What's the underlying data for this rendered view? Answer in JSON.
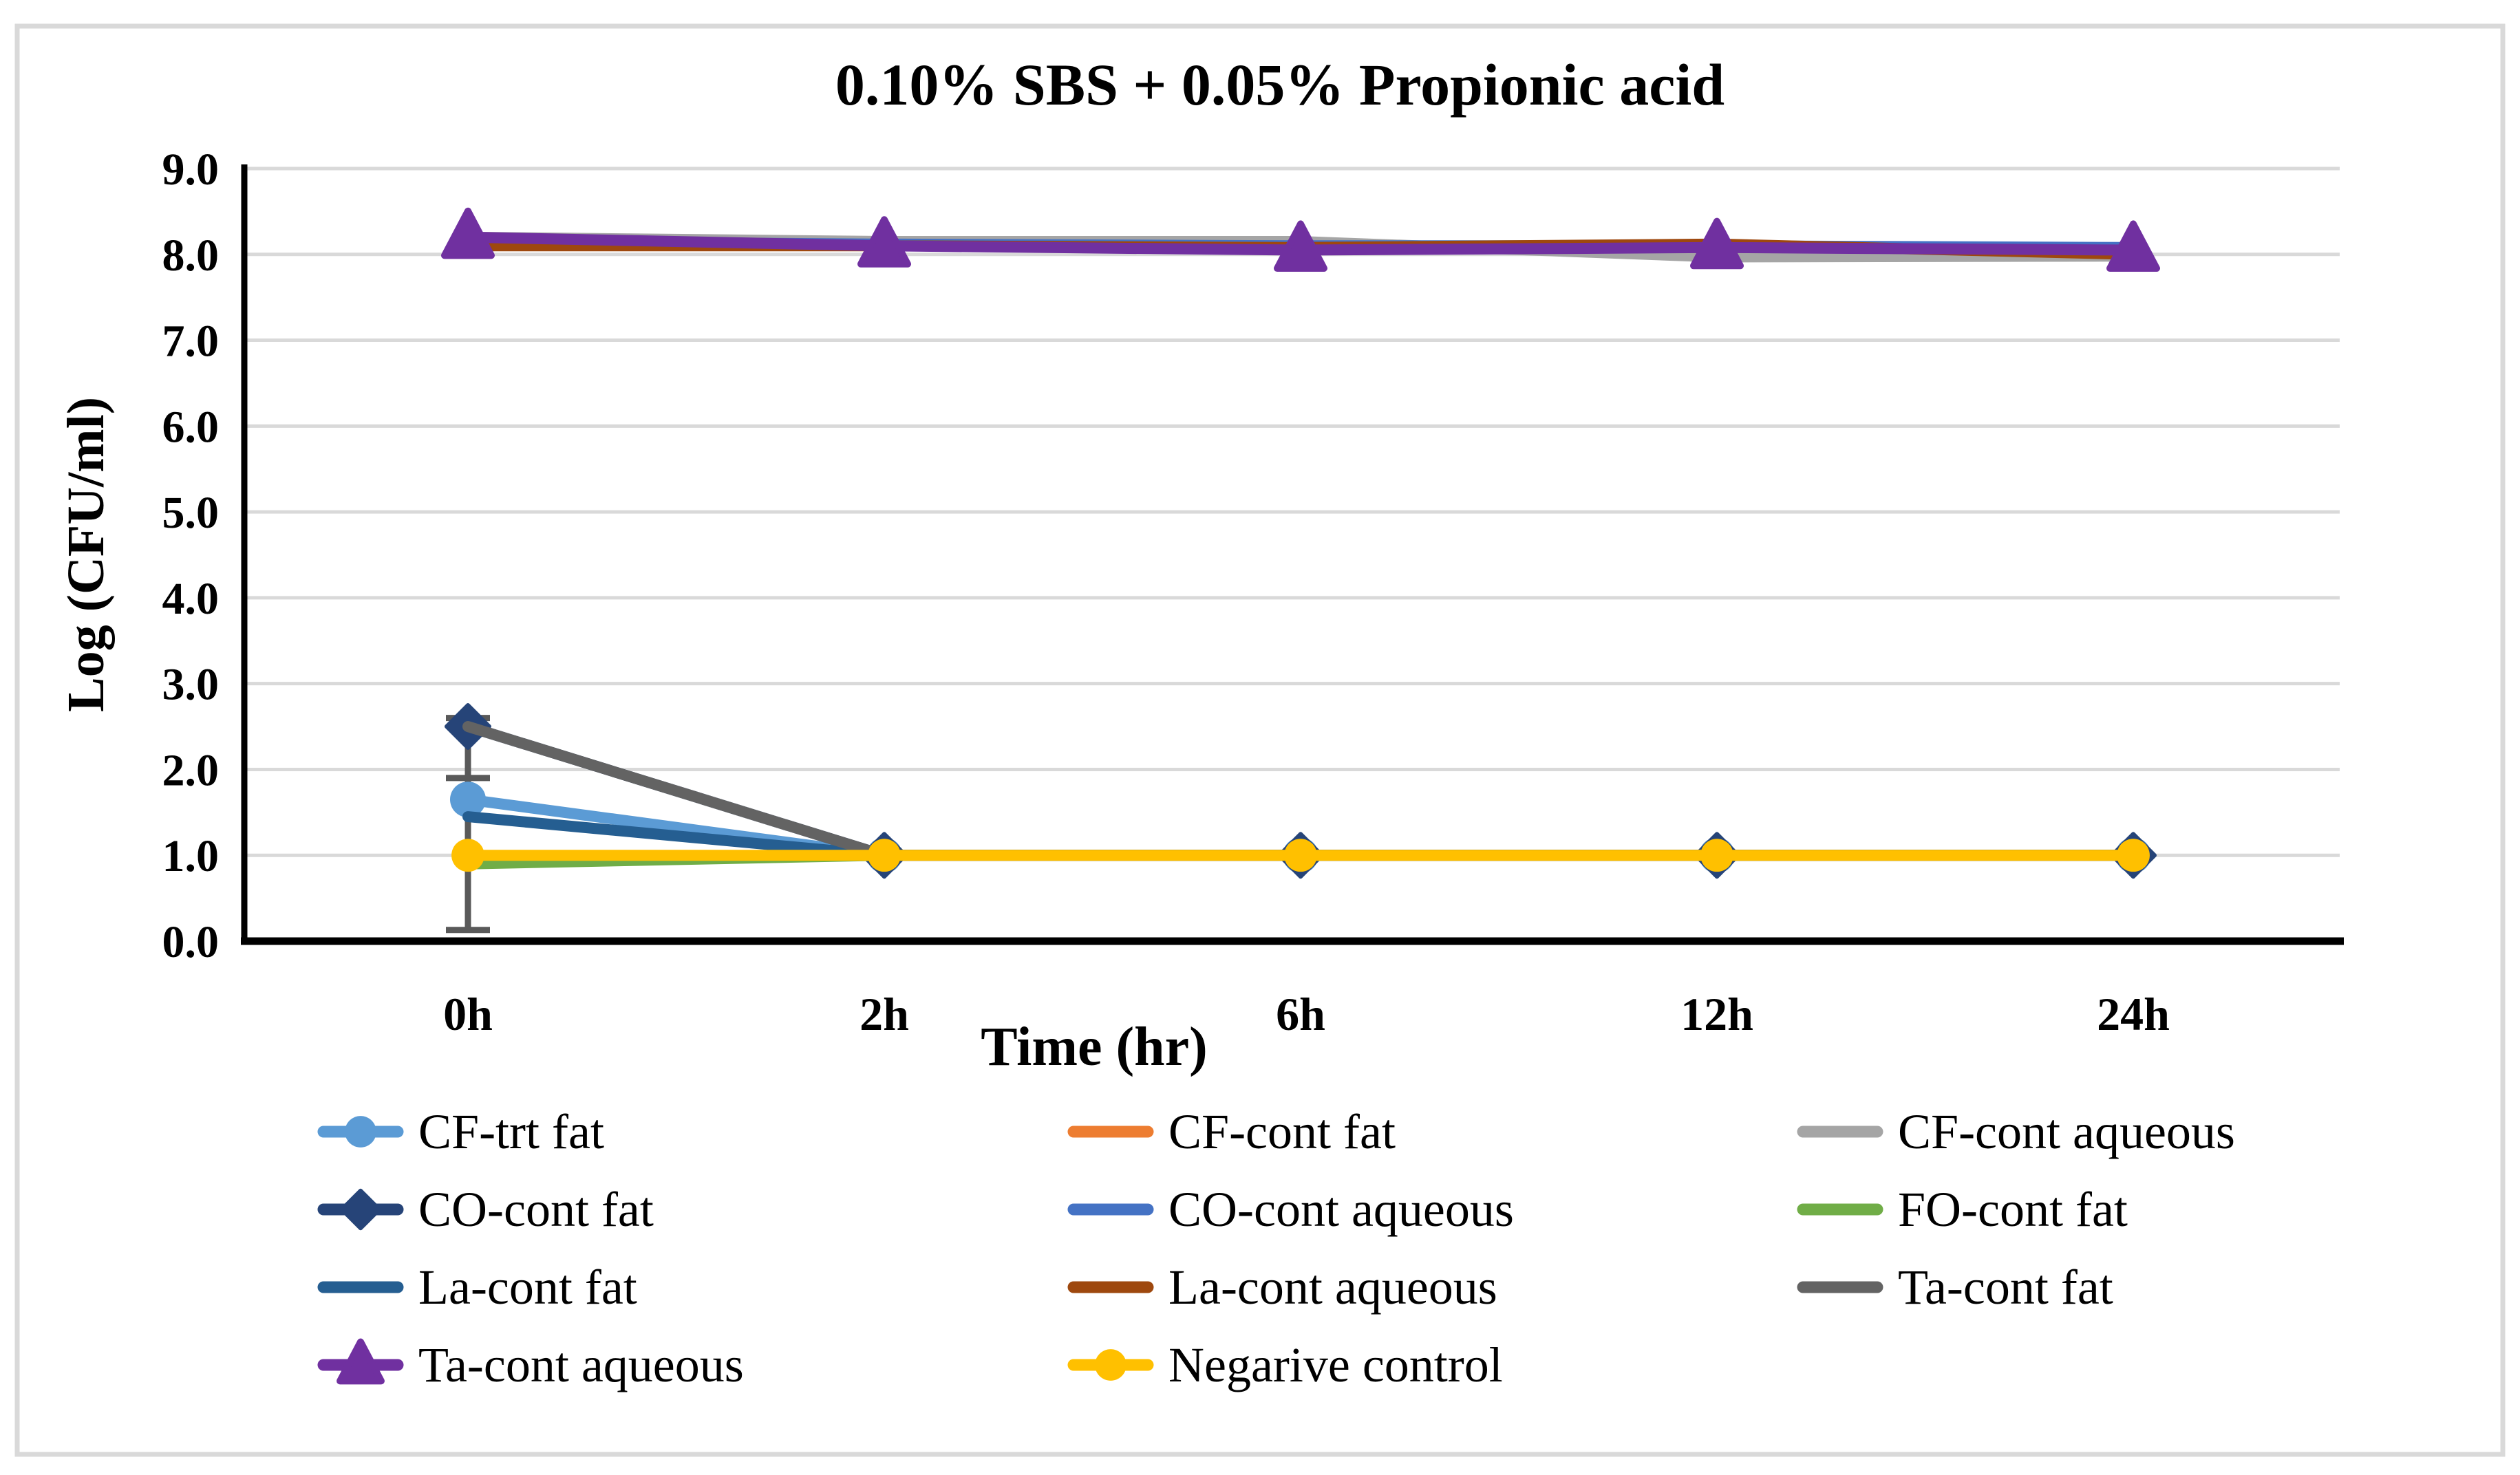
{
  "figure": {
    "background": "#FFFFFF",
    "border_color": "#D9D9D9"
  },
  "chart_data": {
    "type": "line",
    "title": "0.10% SBS + 0.05% Propionic acid",
    "xlabel": "Time (hr)",
    "ylabel": "Log (CFU/ml)",
    "categories": [
      "0h",
      "2h",
      "6h",
      "12h",
      "24h"
    ],
    "ylim": [
      0,
      9
    ],
    "ytick_labels": [
      "0.0",
      "1.0",
      "2.0",
      "3.0",
      "4.0",
      "5.0",
      "6.0",
      "7.0",
      "8.0",
      "9.0"
    ],
    "grid": "horizontal-gridlines-on",
    "gridline_color": "#D9D9D9",
    "axis_color": "#000000",
    "legend_position": "bottom",
    "error_bar": {
      "category_index": 0,
      "from": 0.13,
      "to": 2.6,
      "caps": [
        0.13,
        1.9,
        2.6
      ],
      "color": "#595959"
    },
    "series": [
      {
        "name": "CF-trt fat",
        "color": "#5B9BD5",
        "marker": "circle",
        "values": [
          1.65,
          1.0,
          1.0,
          1.0,
          1.0
        ]
      },
      {
        "name": "CF-cont fat",
        "color": "#ED7D31",
        "marker": "none",
        "values": [
          8.2,
          8.1,
          8.1,
          8.05,
          8.0
        ]
      },
      {
        "name": "CF-cont aqueous",
        "color": "#A5A5A5",
        "marker": "none",
        "values": [
          8.2,
          8.15,
          8.15,
          7.97,
          7.98
        ]
      },
      {
        "name": "CO-cont fat",
        "color": "#264478",
        "marker": "diamond",
        "values": [
          2.5,
          1.0,
          1.0,
          1.0,
          1.0
        ]
      },
      {
        "name": "CO-cont aqueous",
        "color": "#4472C4",
        "marker": "none",
        "values": [
          8.15,
          8.12,
          8.1,
          8.1,
          8.08
        ]
      },
      {
        "name": "FO-cont fat",
        "color": "#70AD47",
        "marker": "none",
        "values": [
          0.9,
          1.0,
          1.0,
          1.0,
          1.0
        ]
      },
      {
        "name": "La-cont fat",
        "color": "#255E91",
        "marker": "none",
        "values": [
          1.45,
          1.0,
          1.0,
          1.0,
          1.0
        ]
      },
      {
        "name": "La-cont aqueous",
        "color": "#9E480E",
        "marker": "none",
        "values": [
          8.1,
          8.1,
          8.08,
          8.12,
          8.0
        ]
      },
      {
        "name": "Ta-cont fat",
        "color": "#636363",
        "marker": "none",
        "values": [
          2.5,
          1.0,
          1.0,
          1.0,
          1.0
        ]
      },
      {
        "name": "Ta-cont aqueous",
        "color": "#7030A0",
        "marker": "triangle",
        "values": [
          8.2,
          8.1,
          8.05,
          8.08,
          8.05
        ]
      },
      {
        "name": "Negarive control",
        "color": "#FFC000",
        "marker": "circle",
        "values": [
          1.0,
          1.0,
          1.0,
          1.0,
          1.0
        ]
      }
    ]
  }
}
